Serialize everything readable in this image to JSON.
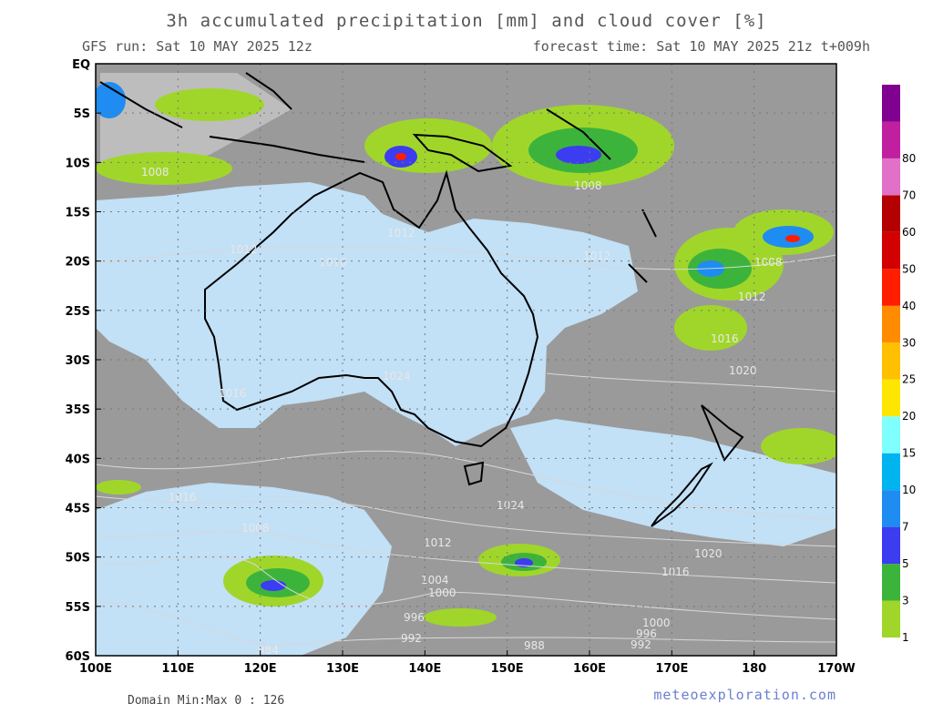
{
  "header": {
    "title": "3h accumulated precipitation [mm] and cloud cover [%]",
    "run": "GFS run: Sat 10 MAY 2025 12z",
    "forecast": "forecast time: Sat 10 MAY 2025 21z  t+009h"
  },
  "map": {
    "lat_labels": [
      "EQ",
      "5S",
      "10S",
      "15S",
      "20S",
      "25S",
      "30S",
      "35S",
      "40S",
      "45S",
      "50S",
      "55S",
      "60S"
    ],
    "lon_labels": [
      "100E",
      "110E",
      "120E",
      "130E",
      "140E",
      "150E",
      "160E",
      "170E",
      "180",
      "170W"
    ],
    "isobar_labels": [
      "1008",
      "1012",
      "1016",
      "1012",
      "1008",
      "1012",
      "1016",
      "1020",
      "1024",
      "1024",
      "1016",
      "1016",
      "1008",
      "1012",
      "1004",
      "1000",
      "996",
      "992",
      "984",
      "988",
      "1000",
      "996",
      "992",
      "1020",
      "1016",
      "1012",
      "1008"
    ]
  },
  "colorbar": {
    "labels": [
      "1",
      "3",
      "5",
      "7",
      "10",
      "15",
      "20",
      "25",
      "30",
      "40",
      "50",
      "60",
      "70",
      "80"
    ],
    "colors": [
      "#a0d62a",
      "#3cb43c",
      "#3c3cf0",
      "#1e8cf0",
      "#00b4f0",
      "#80ffff",
      "#ffe600",
      "#ffc000",
      "#ff8c00",
      "#ff1e00",
      "#d20000",
      "#b40000",
      "#e070c8",
      "#c020a0",
      "#800090"
    ]
  },
  "footer": {
    "domain": "Domain Min:Max 0 : 126",
    "website": "meteoexploration.com"
  }
}
